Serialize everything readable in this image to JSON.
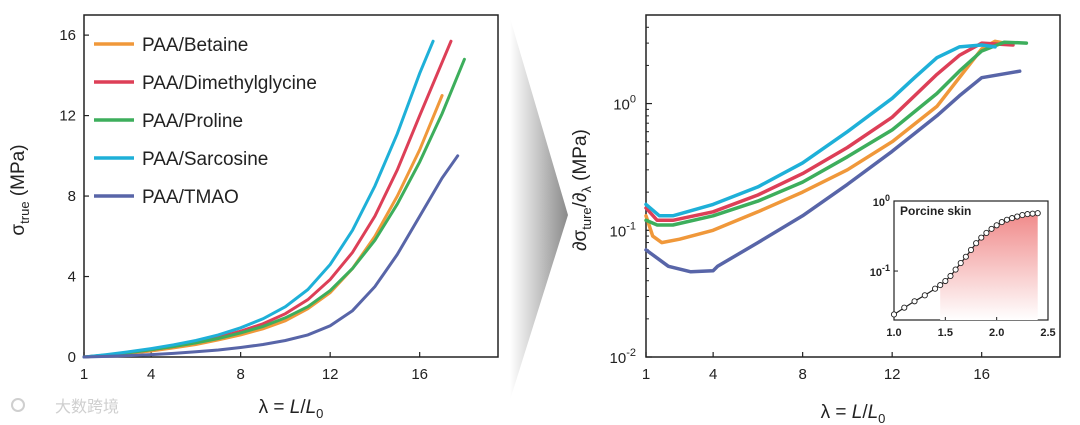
{
  "chart_data": [
    {
      "type": "line",
      "panel": "left",
      "xlabel": "λ = L/L0",
      "ylabel": "σtrue (MPa)",
      "xlim": [
        1,
        19.5
      ],
      "ylim": [
        0,
        17
      ],
      "xticks": [
        1,
        4,
        8,
        12,
        16
      ],
      "yticks": [
        0,
        4,
        8,
        12,
        16
      ],
      "legend_position": "top-left",
      "series": [
        {
          "name": "PAA/Betaine",
          "color": "#F0983A",
          "x": [
            1,
            2,
            3,
            4,
            5,
            6,
            7,
            8,
            9,
            10,
            11,
            12,
            13,
            14,
            15,
            16,
            17
          ],
          "y": [
            0,
            0.08,
            0.18,
            0.3,
            0.45,
            0.62,
            0.85,
            1.1,
            1.4,
            1.8,
            2.4,
            3.2,
            4.4,
            6.0,
            8.0,
            10.3,
            13.0
          ]
        },
        {
          "name": "PAA/Dimethylglycine",
          "color": "#DD3F57",
          "x": [
            1,
            2,
            3,
            4,
            5,
            6,
            7,
            8,
            9,
            10,
            11,
            12,
            13,
            14,
            15,
            16,
            17.4
          ],
          "y": [
            0,
            0.1,
            0.22,
            0.36,
            0.52,
            0.72,
            0.98,
            1.28,
            1.65,
            2.15,
            2.85,
            3.85,
            5.2,
            7.0,
            9.3,
            12.0,
            15.7
          ]
        },
        {
          "name": "PAA/Proline",
          "color": "#3DAE5C",
          "x": [
            1,
            2,
            3,
            4,
            5,
            6,
            7,
            8,
            9,
            10,
            11,
            12,
            13,
            14,
            15,
            16,
            17,
            18
          ],
          "y": [
            0,
            0.1,
            0.22,
            0.36,
            0.52,
            0.7,
            0.92,
            1.2,
            1.52,
            1.95,
            2.5,
            3.3,
            4.4,
            5.8,
            7.6,
            9.7,
            12.1,
            14.8
          ]
        },
        {
          "name": "PAA/Sarcosine",
          "color": "#1EB0D8",
          "x": [
            1,
            2,
            3,
            4,
            5,
            6,
            7,
            8,
            9,
            10,
            11,
            12,
            13,
            14,
            15,
            16,
            16.6
          ],
          "y": [
            0,
            0.12,
            0.26,
            0.42,
            0.6,
            0.82,
            1.1,
            1.45,
            1.9,
            2.5,
            3.35,
            4.6,
            6.3,
            8.5,
            11.1,
            14.1,
            15.7
          ]
        },
        {
          "name": "PAA/TMAO",
          "color": "#5865A8",
          "x": [
            1,
            2,
            3,
            4,
            5,
            6,
            7,
            8,
            9,
            10,
            11,
            12,
            13,
            14,
            15,
            16,
            17,
            17.7
          ],
          "y": [
            0,
            0.03,
            0.07,
            0.12,
            0.18,
            0.26,
            0.35,
            0.47,
            0.62,
            0.82,
            1.1,
            1.55,
            2.3,
            3.5,
            5.1,
            7.0,
            8.9,
            10.0
          ]
        }
      ]
    },
    {
      "type": "line",
      "panel": "right",
      "xlabel": "λ = L/L0",
      "ylabel": "∂σture/∂λ (MPa)",
      "yscale": "log",
      "xlim": [
        1,
        19.5
      ],
      "ylim": [
        0.01,
        5
      ],
      "xticks": [
        1,
        4,
        8,
        12,
        16
      ],
      "yticks": [
        0.01,
        0.1,
        1
      ],
      "series": [
        {
          "name": "PAA/Betaine",
          "color": "#F0983A",
          "x": [
            1,
            1.3,
            1.7,
            2.5,
            4,
            6,
            8,
            10,
            12,
            14,
            15,
            16,
            16.6,
            17
          ],
          "y": [
            0.13,
            0.09,
            0.08,
            0.085,
            0.1,
            0.14,
            0.2,
            0.3,
            0.5,
            0.95,
            1.6,
            2.7,
            3.1,
            3.0
          ]
        },
        {
          "name": "PAA/Dimethylglycine",
          "color": "#DD3F57",
          "x": [
            1,
            1.5,
            2.2,
            4,
            6,
            8,
            10,
            12,
            13,
            14,
            15,
            16,
            17.4
          ],
          "y": [
            0.15,
            0.12,
            0.12,
            0.14,
            0.19,
            0.28,
            0.45,
            0.78,
            1.15,
            1.7,
            2.4,
            3.0,
            2.9
          ]
        },
        {
          "name": "PAA/Proline",
          "color": "#3DAE5C",
          "x": [
            1,
            1.5,
            2.2,
            4,
            6,
            8,
            10,
            12,
            14,
            15,
            16,
            17,
            18
          ],
          "y": [
            0.12,
            0.11,
            0.11,
            0.13,
            0.17,
            0.24,
            0.38,
            0.62,
            1.2,
            1.8,
            2.6,
            3.05,
            3.0
          ]
        },
        {
          "name": "PAA/Sarcosine",
          "color": "#1EB0D8",
          "x": [
            1,
            1.6,
            2.2,
            4,
            6,
            8,
            10,
            12,
            13,
            14,
            15,
            16,
            16.6
          ],
          "y": [
            0.16,
            0.13,
            0.13,
            0.16,
            0.22,
            0.34,
            0.6,
            1.1,
            1.6,
            2.3,
            2.8,
            2.9,
            2.8
          ]
        },
        {
          "name": "PAA/TMAO",
          "color": "#5865A8",
          "x": [
            1,
            2,
            3,
            4,
            4.2,
            6,
            8,
            10,
            12,
            14,
            15,
            16,
            17.7
          ],
          "y": [
            0.07,
            0.052,
            0.047,
            0.048,
            0.052,
            0.08,
            0.13,
            0.23,
            0.42,
            0.8,
            1.15,
            1.6,
            1.8
          ]
        }
      ],
      "inset": {
        "type": "scatter",
        "title": "Porcine skin",
        "yscale": "log",
        "xlim": [
          1.0,
          2.5
        ],
        "ylim": [
          0.02,
          1
        ],
        "xticks": [
          1.0,
          1.5,
          2.0,
          2.5
        ],
        "yticks": [
          0.1,
          1
        ],
        "x": [
          1.0,
          1.1,
          1.2,
          1.3,
          1.4,
          1.45,
          1.5,
          1.55,
          1.6,
          1.65,
          1.7,
          1.75,
          1.8,
          1.85,
          1.9,
          1.95,
          2.0,
          2.05,
          2.1,
          2.15,
          2.2,
          2.25,
          2.3,
          2.35,
          2.4
        ],
        "y": [
          0.024,
          0.03,
          0.037,
          0.045,
          0.056,
          0.063,
          0.072,
          0.085,
          0.105,
          0.13,
          0.16,
          0.2,
          0.25,
          0.3,
          0.35,
          0.4,
          0.45,
          0.5,
          0.54,
          0.57,
          0.6,
          0.63,
          0.65,
          0.66,
          0.67
        ]
      }
    }
  ],
  "watermark": "大数跨境"
}
